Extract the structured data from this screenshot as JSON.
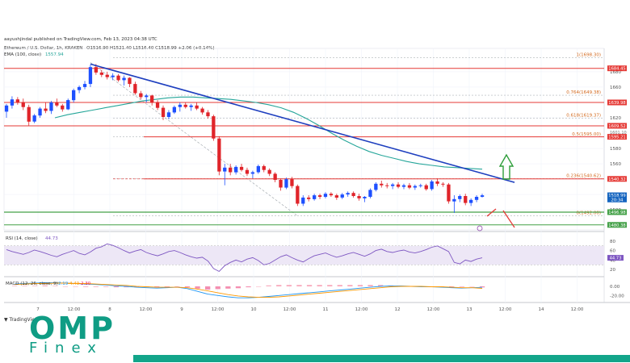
{
  "header": {
    "publisher": "aayushjindal published on TradingView.com, Feb 13, 2023 04:38 UTC",
    "instrument": "Ethereum / U.S. Dollar, 1h, KRAKEN",
    "ohlc": "O1516.90 H1521.40 L1516.40 C1518.99 +2.06 (+0.14%)",
    "ema_label": "EMA (100, close)",
    "ema_value": "1557.94"
  },
  "chart_data": {
    "type": "candlestick",
    "symbol": "ETH/USD",
    "timeframe": "1h",
    "ylim": [
      1477,
      1702
    ],
    "x_ticks": [
      "7",
      "12:00",
      "8",
      "12:00",
      "9",
      "12:00",
      "10",
      "12:00",
      "11",
      "12:00",
      "12",
      "12:00",
      "13",
      "12:00",
      "14",
      "12:00"
    ],
    "price_ticks": [
      1680,
      1660,
      1640,
      1620,
      1580,
      1560,
      1520,
      1500
    ],
    "price_tags": [
      {
        "label": "1684.45",
        "value": 1684.45,
        "color": "#e53935"
      },
      {
        "label": "1639.98",
        "value": 1639.98,
        "color": "#e53935"
      },
      {
        "label": "1609.52",
        "value": 1609.52,
        "color": "#e53935"
      },
      {
        "label": "1595.21",
        "value": 1595.21,
        "color": "#e53935"
      },
      {
        "label": "1540.32",
        "value": 1540.32,
        "color": "#e53935"
      },
      {
        "label": "1518.99",
        "value": 1518.99,
        "color": "#1565c0"
      },
      {
        "label": "20:34",
        "value": 1513.5,
        "color": "#1565c0"
      },
      {
        "label": "1496.98",
        "value": 1496.98,
        "color": "#43a047"
      },
      {
        "label": "1480.38",
        "value": 1480.38,
        "color": "#43a047"
      }
    ],
    "fib_levels": [
      {
        "label": "1(1698.30)",
        "value": 1698.3
      },
      {
        "label": "0.764(1649.38)",
        "value": 1649.38
      },
      {
        "label": "0.618(1619.37)",
        "value": 1619.37
      },
      {
        "label": "0.5(1595.00)",
        "value": 1595.0
      },
      {
        "label": "0.236(1540.62)",
        "value": 1540.62
      },
      {
        "label": "0(1492.00)",
        "value": 1492.0
      }
    ],
    "small_tick_label": "1601.10",
    "ohlc": [
      [
        1628,
        1638,
        1620,
        1636
      ],
      [
        1636,
        1648,
        1632,
        1644
      ],
      [
        1644,
        1647,
        1637,
        1640
      ],
      [
        1640,
        1645,
        1630,
        1634
      ],
      [
        1634,
        1637,
        1610,
        1615
      ],
      [
        1615,
        1625,
        1613,
        1623
      ],
      [
        1623,
        1634,
        1620,
        1632
      ],
      [
        1632,
        1640,
        1626,
        1629
      ],
      [
        1629,
        1642,
        1625,
        1640
      ],
      [
        1640,
        1645,
        1634,
        1636
      ],
      [
        1636,
        1638,
        1628,
        1631
      ],
      [
        1631,
        1645,
        1630,
        1643
      ],
      [
        1643,
        1658,
        1640,
        1656
      ],
      [
        1656,
        1662,
        1652,
        1660
      ],
      [
        1660,
        1668,
        1657,
        1664
      ],
      [
        1664,
        1689,
        1660,
        1686
      ],
      [
        1686,
        1690,
        1676,
        1679
      ],
      [
        1679,
        1682,
        1673,
        1676
      ],
      [
        1676,
        1680,
        1670,
        1673
      ],
      [
        1673,
        1678,
        1669,
        1675
      ],
      [
        1675,
        1677,
        1667,
        1669
      ],
      [
        1669,
        1675,
        1662,
        1672
      ],
      [
        1672,
        1673,
        1660,
        1664
      ],
      [
        1664,
        1667,
        1650,
        1652
      ],
      [
        1652,
        1655,
        1644,
        1647
      ],
      [
        1647,
        1651,
        1640,
        1649
      ],
      [
        1649,
        1650,
        1636,
        1640
      ],
      [
        1640,
        1643,
        1630,
        1633
      ],
      [
        1633,
        1636,
        1617,
        1621
      ],
      [
        1621,
        1630,
        1618,
        1627
      ],
      [
        1627,
        1636,
        1625,
        1634
      ],
      [
        1634,
        1640,
        1628,
        1637
      ],
      [
        1637,
        1640,
        1632,
        1634
      ],
      [
        1634,
        1638,
        1629,
        1636
      ],
      [
        1636,
        1640,
        1630,
        1632
      ],
      [
        1632,
        1634,
        1624,
        1627
      ],
      [
        1627,
        1630,
        1619,
        1622
      ],
      [
        1622,
        1624,
        1590,
        1593
      ],
      [
        1593,
        1596,
        1545,
        1550
      ],
      [
        1550,
        1560,
        1532,
        1555
      ],
      [
        1555,
        1560,
        1545,
        1549
      ],
      [
        1549,
        1558,
        1546,
        1556
      ],
      [
        1556,
        1560,
        1550,
        1552
      ],
      [
        1552,
        1555,
        1544,
        1547
      ],
      [
        1547,
        1551,
        1541,
        1549
      ],
      [
        1549,
        1559,
        1547,
        1557
      ],
      [
        1557,
        1559,
        1549,
        1552
      ],
      [
        1552,
        1554,
        1544,
        1547
      ],
      [
        1547,
        1549,
        1536,
        1539
      ],
      [
        1539,
        1541,
        1525,
        1529
      ],
      [
        1529,
        1542,
        1527,
        1540
      ],
      [
        1540,
        1543,
        1528,
        1531
      ],
      [
        1531,
        1533,
        1505,
        1508
      ],
      [
        1508,
        1519,
        1505,
        1516
      ],
      [
        1516,
        1519,
        1511,
        1514
      ],
      [
        1514,
        1521,
        1512,
        1519
      ],
      [
        1519,
        1521,
        1514,
        1517
      ],
      [
        1517,
        1523,
        1515,
        1521
      ],
      [
        1521,
        1523,
        1517,
        1519
      ],
      [
        1519,
        1521,
        1513,
        1516
      ],
      [
        1516,
        1522,
        1514,
        1520
      ],
      [
        1520,
        1524,
        1517,
        1522
      ],
      [
        1522,
        1524,
        1516,
        1518
      ],
      [
        1518,
        1521,
        1512,
        1515
      ],
      [
        1515,
        1518,
        1510,
        1517
      ],
      [
        1517,
        1528,
        1515,
        1526
      ],
      [
        1526,
        1536,
        1524,
        1534
      ],
      [
        1534,
        1538,
        1529,
        1532
      ],
      [
        1532,
        1535,
        1528,
        1531
      ],
      [
        1531,
        1535,
        1527,
        1533
      ],
      [
        1533,
        1536,
        1528,
        1530
      ],
      [
        1530,
        1534,
        1527,
        1532
      ],
      [
        1532,
        1535,
        1527,
        1529
      ],
      [
        1529,
        1533,
        1526,
        1531
      ],
      [
        1531,
        1534,
        1529,
        1532
      ],
      [
        1532,
        1534,
        1525,
        1527
      ],
      [
        1527,
        1539,
        1525,
        1537
      ],
      [
        1537,
        1541,
        1531,
        1534
      ],
      [
        1534,
        1536,
        1530,
        1533
      ],
      [
        1533,
        1535,
        1508,
        1511
      ],
      [
        1511,
        1519,
        1496,
        1514
      ],
      [
        1514,
        1520,
        1510,
        1518
      ],
      [
        1518,
        1521,
        1506,
        1509
      ],
      [
        1509,
        1515,
        1505,
        1513
      ],
      [
        1513,
        1519,
        1510,
        1517
      ],
      [
        1517,
        1521,
        1516,
        1519
      ]
    ],
    "ema": [
      1620,
      1624,
      1627,
      1630,
      1633,
      1636,
      1639,
      1642,
      1644,
      1646,
      1647,
      1647,
      1646,
      1645,
      1644,
      1642,
      1640,
      1637,
      1633,
      1627,
      1619,
      1610,
      1600,
      1591,
      1583,
      1576,
      1571,
      1567,
      1563,
      1560,
      1558,
      1556,
      1555,
      1554,
      1553
    ],
    "resistance_trendline": {
      "from": [
        15,
        1690
      ],
      "to": [
        88,
        1540
      ]
    },
    "rsi": {
      "label": "RSI (14, close)",
      "value_label": "44.73",
      "ticks": [
        80,
        60,
        40,
        20
      ],
      "ylim": [
        10,
        90
      ],
      "band": [
        30,
        70
      ],
      "values": [
        62,
        58,
        55,
        52,
        56,
        61,
        58,
        54,
        50,
        47,
        52,
        56,
        60,
        54,
        51,
        57,
        65,
        68,
        74,
        71,
        66,
        60,
        55,
        59,
        62,
        56,
        52,
        49,
        53,
        58,
        60,
        56,
        51,
        47,
        44,
        46,
        38,
        22,
        16,
        28,
        35,
        40,
        36,
        42,
        45,
        39,
        30,
        33,
        40,
        47,
        51,
        45,
        40,
        36,
        43,
        49,
        52,
        55,
        50,
        46,
        49,
        53,
        56,
        52,
        48,
        53,
        60,
        63,
        58,
        56,
        59,
        61,
        57,
        55,
        58,
        62,
        67,
        70,
        64,
        58,
        35,
        32,
        40,
        37,
        42,
        44.73
      ]
    },
    "macd": {
      "label": "MACD (12, 26, close, 9)",
      "values_label": [
        "-2.19",
        "-4.49",
        "-2.30"
      ],
      "ticks": [
        0.0,
        -20.0
      ],
      "ylim": [
        -30,
        14
      ],
      "macd": [
        5,
        6,
        7,
        8,
        8,
        7,
        6,
        5,
        4,
        3,
        1,
        0,
        -2,
        -3,
        -4,
        -3,
        -2,
        -5,
        -11,
        -17,
        -20,
        -23,
        -25,
        -25,
        -24,
        -22,
        -20,
        -18,
        -16,
        -14,
        -12,
        -10,
        -8,
        -6,
        -4,
        -2,
        0,
        1,
        1,
        0,
        -1,
        -1,
        -2,
        -3,
        -4,
        -3,
        -2.19
      ],
      "signal": [
        4,
        5,
        6,
        6,
        7,
        7,
        6,
        6,
        5,
        4,
        3,
        2,
        0,
        -1,
        -2,
        -2,
        -2,
        -3,
        -6,
        -10,
        -14,
        -18,
        -21,
        -23,
        -24,
        -24,
        -23,
        -21,
        -19,
        -17,
        -15,
        -13,
        -11,
        -9,
        -7,
        -5,
        -3,
        -1,
        0,
        0,
        0,
        -1,
        -1,
        -2,
        -3,
        -3,
        -4.49
      ],
      "hist": [
        1,
        1,
        1,
        2,
        1,
        0,
        0,
        -1,
        -1,
        -1,
        -2,
        -2,
        -2,
        -2,
        -2,
        -1,
        0,
        -2,
        -5,
        -7,
        -6,
        -5,
        -4,
        -2,
        0,
        2,
        3,
        3,
        3,
        3,
        3,
        3,
        3,
        3,
        3,
        3,
        3,
        2,
        1,
        0,
        -1,
        0,
        -1,
        -1,
        -1,
        0,
        -2.3
      ]
    }
  },
  "footer": {
    "tradingview": "TradingView",
    "brand_top": "OMP",
    "brand_bottom": "Finex"
  }
}
